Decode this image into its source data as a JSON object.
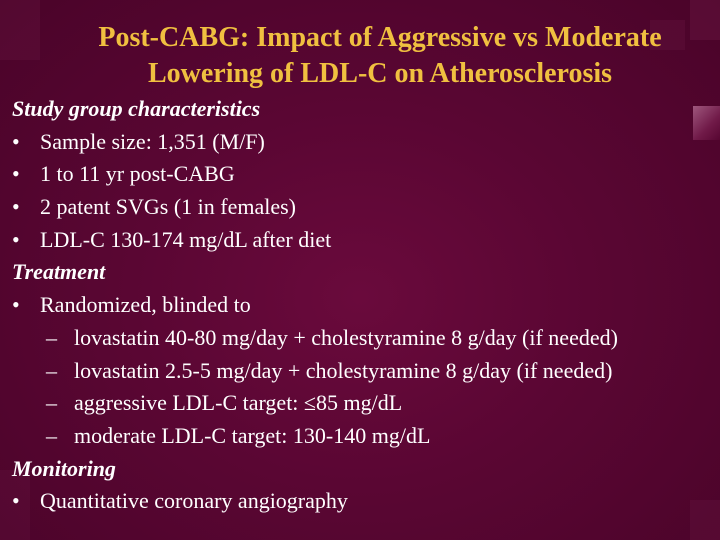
{
  "slide": {
    "title_line1": "Post-CABG: Impact of Aggressive vs Moderate",
    "title_line2": "Lowering of LDL-C on Atherosclerosis",
    "title_color": "#f0c040",
    "background_color": "#5a0633",
    "bullet_symbol": "•",
    "dash_symbol": "–",
    "sections": [
      {
        "heading": "Study group characteristics",
        "bullets": [
          "Sample size: 1,351 (M/F)",
          "1 to 11 yr post-CABG",
          "2 patent SVGs (1 in females)",
          "LDL-C 130-174 mg/dL after diet"
        ]
      },
      {
        "heading": "Treatment",
        "bullets": [
          "Randomized, blinded to"
        ],
        "subitems": [
          "lovastatin 40-80 mg/day + cholestyramine 8 g/day (if needed)",
          "lovastatin 2.5-5 mg/day + cholestyramine  8 g/day (if needed)",
          "aggressive LDL-C target: ≤85 mg/dL",
          "moderate LDL-C target: 130-140 mg/dL"
        ]
      },
      {
        "heading": "Monitoring",
        "bullets": [
          "Quantitative coronary angiography"
        ]
      }
    ]
  }
}
